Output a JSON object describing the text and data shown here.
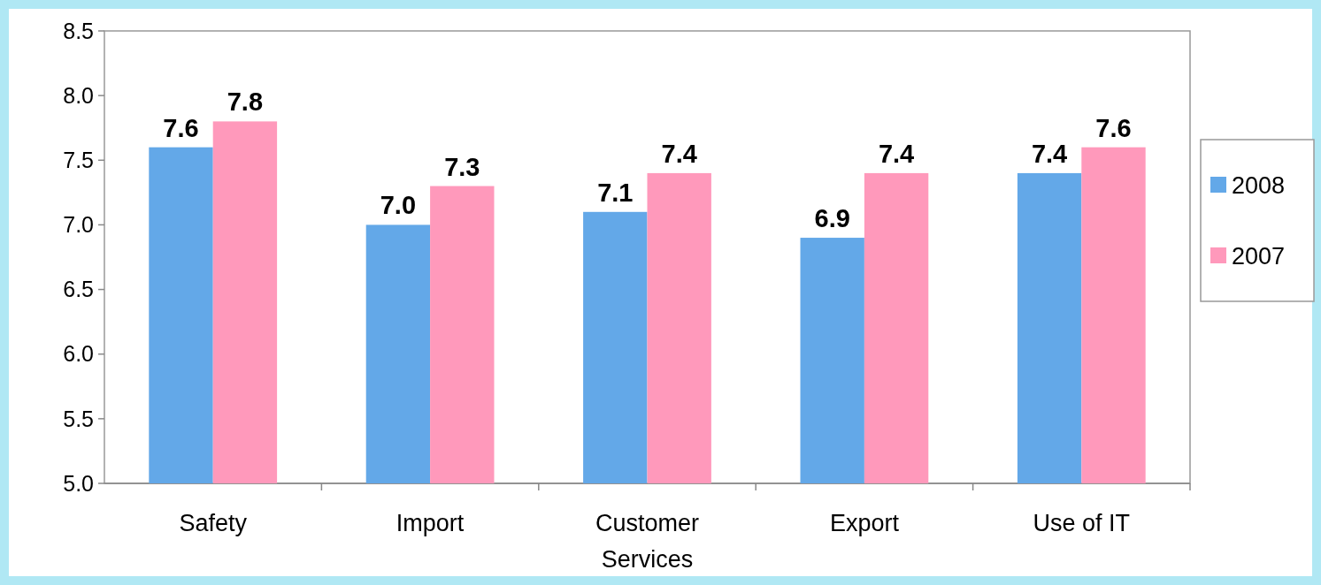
{
  "chart_data": {
    "type": "bar",
    "categories": [
      "Safety",
      "Import",
      "Customer Services",
      "Export",
      "Use of IT"
    ],
    "series": [
      {
        "name": "2008",
        "color": "#63a8e8",
        "values": [
          7.6,
          7.0,
          7.1,
          6.9,
          7.4
        ],
        "value_labels": [
          "7.6",
          "7.0",
          "7.1",
          "6.9",
          "7.4"
        ]
      },
      {
        "name": "2007",
        "color": "#ff99bb",
        "values": [
          7.8,
          7.3,
          7.4,
          7.4,
          7.6
        ],
        "value_labels": [
          "7.8",
          "7.3",
          "7.4",
          "7.4",
          "7.6"
        ]
      }
    ],
    "ylim": [
      5.0,
      8.5
    ],
    "yticks": [
      {
        "value": 5,
        "label": "5.0"
      },
      {
        "value": 5.5,
        "label": "5.5"
      },
      {
        "value": 6,
        "label": "6.0"
      },
      {
        "value": 6.5,
        "label": "6.5"
      },
      {
        "value": 7,
        "label": "7.0"
      },
      {
        "value": 7.5,
        "label": "7.5"
      },
      {
        "value": 8,
        "label": "8.0"
      },
      {
        "value": 8.5,
        "label": "8.5"
      }
    ],
    "grid": false,
    "legend": "right"
  }
}
